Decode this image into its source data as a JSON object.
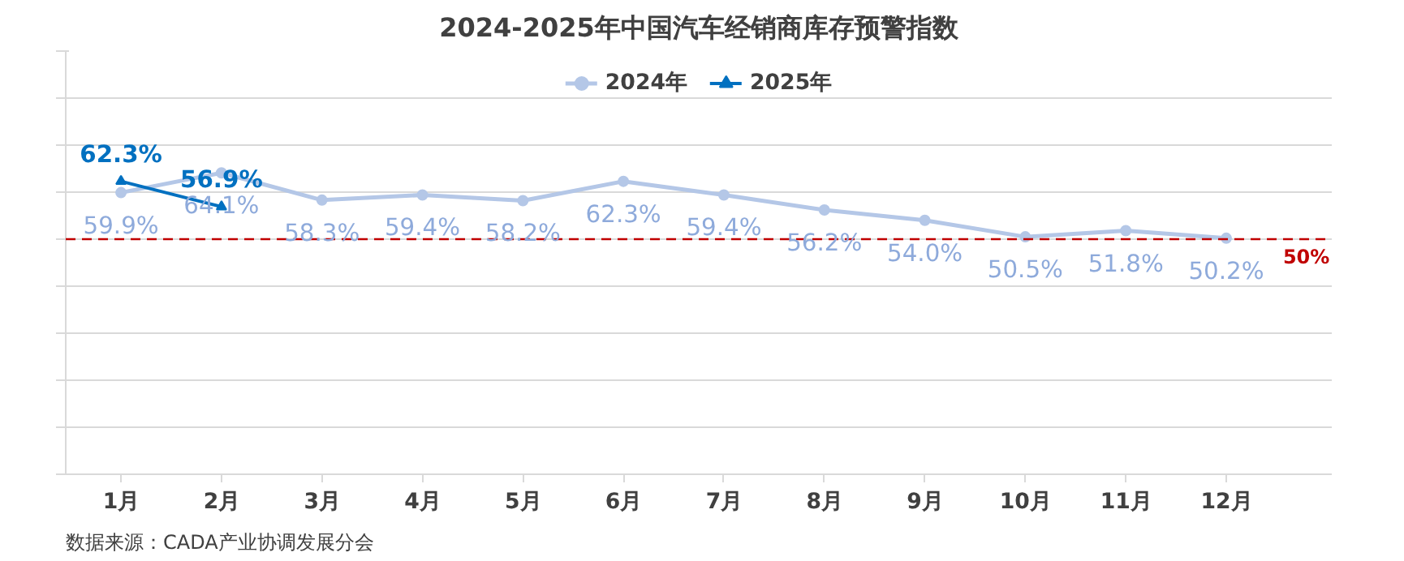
{
  "chart_data": {
    "type": "line",
    "title": "2024-2025年中国汽车经销商库存预警指数",
    "categories": [
      "1月",
      "2月",
      "3月",
      "4月",
      "5月",
      "6月",
      "7月",
      "8月",
      "9月",
      "10月",
      "11月",
      "12月"
    ],
    "series": [
      {
        "name": "2024年",
        "color": "#b4c7e7",
        "marker": "circle",
        "values": [
          59.9,
          64.1,
          58.3,
          59.4,
          58.2,
          62.3,
          59.4,
          56.2,
          54.0,
          50.5,
          51.8,
          50.2
        ],
        "value_labels": [
          "59.9%",
          "64.1%",
          "58.3%",
          "59.4%",
          "58.2%",
          "62.3%",
          "59.4%",
          "56.2%",
          "54.0%",
          "50.5%",
          "51.8%",
          "50.2%"
        ]
      },
      {
        "name": "2025年",
        "color": "#0070c0",
        "marker": "triangle",
        "values": [
          62.3,
          56.9,
          null,
          null,
          null,
          null,
          null,
          null,
          null,
          null,
          null,
          null
        ],
        "value_labels": [
          "62.3%",
          "56.9%",
          null,
          null,
          null,
          null,
          null,
          null,
          null,
          null,
          null,
          null
        ]
      }
    ],
    "ylim": [
      0,
      90
    ],
    "yticks": [
      {
        "value": 0,
        "label": null
      },
      {
        "value": 10,
        "label": null
      },
      {
        "value": 20,
        "label": null
      },
      {
        "value": 30,
        "label": null
      },
      {
        "value": 40,
        "label": null
      },
      {
        "value": 50,
        "label": null
      },
      {
        "value": 60,
        "label": null
      },
      {
        "value": 70,
        "label": null
      },
      {
        "value": 80,
        "label": null
      },
      {
        "value": 90,
        "label": null
      }
    ],
    "tick_labels": "x",
    "grid": "y",
    "legend": "top",
    "ref_lines": [
      {
        "axis": "y",
        "value": 50,
        "label": "50%",
        "color": "#c00000",
        "line_style": "dashed"
      }
    ],
    "annotations": [
      "数据来源：CADA产业协调发展分会"
    ]
  }
}
